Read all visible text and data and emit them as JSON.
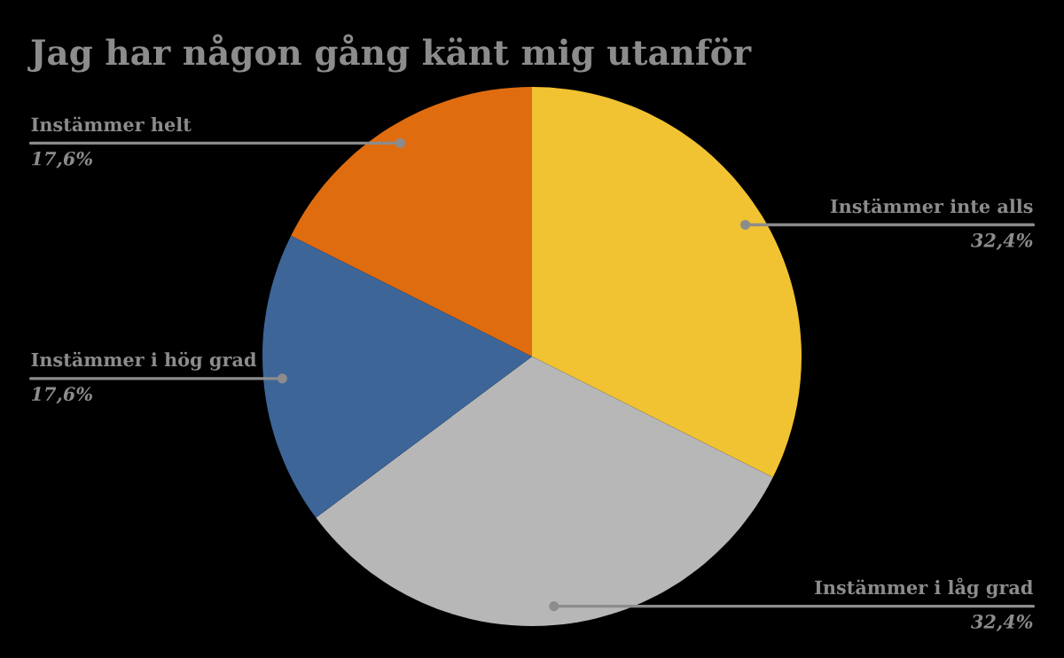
{
  "chart_data": {
    "type": "pie",
    "title": "Jag har någon gång känt mig utanför",
    "categories": [
      "Instämmer inte alls",
      "Instämmer i låg grad",
      "Instämmer i hög grad",
      "Instämmer helt"
    ],
    "values": [
      32.4,
      32.4,
      17.6,
      17.6
    ],
    "value_labels": [
      "32,4%",
      "32,4%",
      "17,6%",
      "17,6%"
    ],
    "colors": [
      "#f1c232",
      "#b7b7b7",
      "#3d6598",
      "#e06c10"
    ]
  }
}
